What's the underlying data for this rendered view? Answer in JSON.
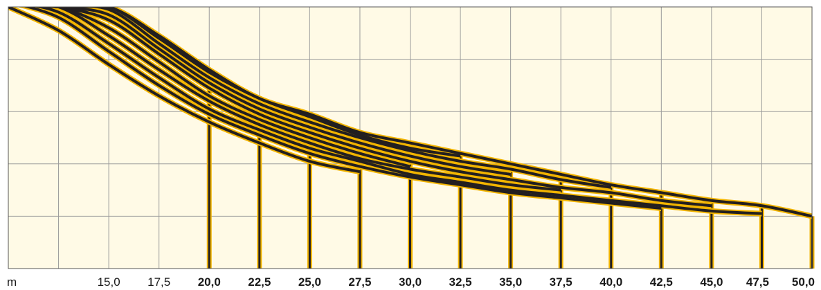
{
  "colors": {
    "background": "#fffae6",
    "grid": "#9a9a9a",
    "curve": "#231f20",
    "highlight": "#f2b400"
  },
  "chart_data": {
    "type": "line",
    "title": "",
    "xlabel": "",
    "ylabel": "",
    "x_unit_label": "m",
    "xlim": [
      10,
      50
    ],
    "ylim": [
      0,
      5
    ],
    "grid": true,
    "y_ticks_labeled": false,
    "x": [
      10,
      12.5,
      15,
      17.5,
      20,
      22.5,
      25,
      27.5,
      30,
      32.5,
      35,
      37.5,
      40,
      42.5,
      45,
      47.5,
      50
    ],
    "x_tick_labels": [
      "m",
      "15,0",
      "17,5",
      "20,0",
      "22,5",
      "25,0",
      "27,5",
      "30,0",
      "32,5",
      "35,0",
      "37,5",
      "40,0",
      "42,5",
      "45,0",
      "47,5",
      "50,0"
    ],
    "x_tick_values": [
      15,
      17.5,
      20,
      22.5,
      25,
      27.5,
      30,
      32.5,
      35,
      37.5,
      40,
      42.5,
      45,
      47.5,
      50
    ],
    "bold_ticks": [
      "20,0",
      "22,5",
      "25,0",
      "27,5",
      "30,0",
      "32,5",
      "35,0",
      "37,5",
      "40,0",
      "42,5",
      "45,0",
      "47,5",
      "50,0"
    ],
    "drop_lines_at": [
      20,
      22.5,
      25,
      27.5,
      30,
      32.5,
      35,
      37.5,
      40,
      42.5,
      45,
      47.5,
      50
    ],
    "series": [
      {
        "values": [
          5.1,
          5.0,
          5.0,
          4.45,
          3.8,
          3.25,
          2.95,
          2.6,
          2.4,
          2.2,
          2.0,
          1.8,
          1.6,
          1.45,
          1.3,
          1.2,
          1.0
        ]
      },
      {
        "end": 32.5,
        "values": [
          5.1,
          5.0,
          5.0,
          4.4,
          3.75,
          3.25,
          2.9,
          2.55,
          2.3,
          2.15,
          null,
          null,
          null,
          null,
          null,
          null,
          null
        ]
      },
      {
        "end": 40,
        "values": [
          5.1,
          5.0,
          4.95,
          4.3,
          3.65,
          3.15,
          2.8,
          2.5,
          2.25,
          2.05,
          1.9,
          1.7,
          1.55,
          null,
          null,
          null,
          null
        ]
      },
      {
        "end": 35,
        "values": [
          5.1,
          5.0,
          4.85,
          4.2,
          3.55,
          3.05,
          2.7,
          2.4,
          2.15,
          1.95,
          1.8,
          null,
          null,
          null,
          null,
          null,
          null
        ]
      },
      {
        "end": 45,
        "values": [
          5.1,
          5.0,
          4.75,
          4.1,
          3.45,
          2.95,
          2.6,
          2.3,
          2.05,
          1.85,
          1.7,
          1.55,
          1.45,
          1.3,
          1.2,
          null,
          null
        ]
      },
      {
        "end": 30,
        "values": [
          5.1,
          5.0,
          4.6,
          3.95,
          3.3,
          2.85,
          2.5,
          2.2,
          1.95,
          null,
          null,
          null,
          null,
          null,
          null,
          null,
          null
        ]
      },
      {
        "end": 37.5,
        "values": [
          5.1,
          5.0,
          4.45,
          3.8,
          3.2,
          2.75,
          2.4,
          2.1,
          1.9,
          1.75,
          1.6,
          1.5,
          null,
          null,
          null,
          null,
          null
        ]
      },
      {
        "end": 47.5,
        "values": [
          5.1,
          4.9,
          4.3,
          3.65,
          3.05,
          2.65,
          2.3,
          2.05,
          1.8,
          1.65,
          1.5,
          1.4,
          1.3,
          1.2,
          1.1,
          1.05,
          null
        ]
      },
      {
        "end": 42.5,
        "values": [
          5.1,
          4.8,
          4.15,
          3.5,
          2.95,
          2.55,
          2.2,
          1.95,
          1.75,
          1.6,
          1.45,
          1.35,
          1.25,
          1.15,
          null,
          null,
          null
        ]
      },
      {
        "end": 27.5,
        "values": [
          5.0,
          4.55,
          3.9,
          3.3,
          2.8,
          2.4,
          2.05,
          1.85,
          null,
          null,
          null,
          null,
          null,
          null,
          null,
          null,
          null
        ]
      }
    ]
  }
}
